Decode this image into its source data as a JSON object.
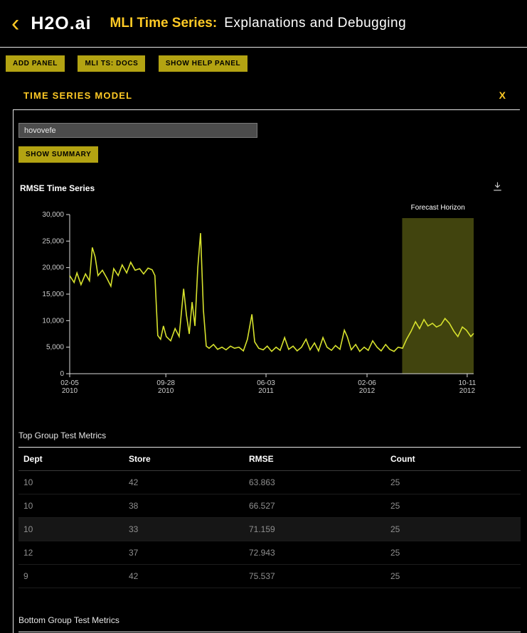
{
  "header": {
    "back_icon": "‹",
    "logo": "H2O.ai",
    "title_prefix": "MLI Time Series:",
    "title": "Explanations and Debugging"
  },
  "toolbar": {
    "buttons": [
      {
        "label": "ADD PANEL"
      },
      {
        "label": "MLI TS: DOCS"
      },
      {
        "label": "SHOW HELP PANEL"
      }
    ]
  },
  "panel": {
    "title": "TIME SERIES MODEL",
    "close_label": "X",
    "search_value": "hovovefe",
    "show_summary_label": "SHOW SUMMARY"
  },
  "colors": {
    "accent": "#fec925",
    "line": "#d7e22d",
    "forecast_fill": "#d7e22d",
    "axis": "#dddddd"
  },
  "chart_data": {
    "type": "line",
    "title": "RMSE Time Series",
    "xlabel": "",
    "ylabel": "",
    "ylim": [
      0,
      30000
    ],
    "y_ticks": [
      0,
      5000,
      10000,
      15000,
      20000,
      25000,
      30000
    ],
    "x_ticks": [
      {
        "line1": "02-05",
        "line2": "2010",
        "frac": 0.0
      },
      {
        "line1": "09-28",
        "line2": "2010",
        "frac": 0.238
      },
      {
        "line1": "06-03",
        "line2": "2011",
        "frac": 0.486
      },
      {
        "line1": "02-06",
        "line2": "2012",
        "frac": 0.736
      },
      {
        "line1": "10-11",
        "line2": "2012",
        "frac": 0.984
      }
    ],
    "legend": "off",
    "grid": "off",
    "forecast_region": {
      "label": "Forecast Horizon",
      "start_frac": 0.823,
      "end_frac": 1.0
    },
    "series": [
      {
        "name": "RMSE",
        "color": "#d7e22d",
        "points": [
          [
            0.0,
            18500
          ],
          [
            0.011,
            17200
          ],
          [
            0.018,
            19000
          ],
          [
            0.028,
            16800
          ],
          [
            0.039,
            18800
          ],
          [
            0.049,
            17500
          ],
          [
            0.056,
            23800
          ],
          [
            0.063,
            22000
          ],
          [
            0.07,
            18500
          ],
          [
            0.081,
            19500
          ],
          [
            0.092,
            18000
          ],
          [
            0.102,
            16500
          ],
          [
            0.109,
            19800
          ],
          [
            0.12,
            18500
          ],
          [
            0.13,
            20500
          ],
          [
            0.141,
            19000
          ],
          [
            0.151,
            21000
          ],
          [
            0.162,
            19500
          ],
          [
            0.173,
            19800
          ],
          [
            0.183,
            18800
          ],
          [
            0.194,
            19900
          ],
          [
            0.204,
            19600
          ],
          [
            0.211,
            18500
          ],
          [
            0.218,
            7200
          ],
          [
            0.225,
            6500
          ],
          [
            0.232,
            9000
          ],
          [
            0.239,
            7000
          ],
          [
            0.25,
            6200
          ],
          [
            0.261,
            8500
          ],
          [
            0.271,
            7000
          ],
          [
            0.282,
            16000
          ],
          [
            0.289,
            11000
          ],
          [
            0.296,
            7500
          ],
          [
            0.303,
            13500
          ],
          [
            0.31,
            9000
          ],
          [
            0.317,
            20000
          ],
          [
            0.324,
            26500
          ],
          [
            0.331,
            12000
          ],
          [
            0.338,
            5200
          ],
          [
            0.345,
            4800
          ],
          [
            0.356,
            5500
          ],
          [
            0.366,
            4600
          ],
          [
            0.377,
            5000
          ],
          [
            0.387,
            4500
          ],
          [
            0.398,
            5200
          ],
          [
            0.408,
            4800
          ],
          [
            0.419,
            5000
          ],
          [
            0.43,
            4300
          ],
          [
            0.44,
            6500
          ],
          [
            0.451,
            11200
          ],
          [
            0.458,
            6000
          ],
          [
            0.468,
            4800
          ],
          [
            0.479,
            4500
          ],
          [
            0.489,
            5200
          ],
          [
            0.5,
            4200
          ],
          [
            0.511,
            5000
          ],
          [
            0.521,
            4400
          ],
          [
            0.532,
            6800
          ],
          [
            0.542,
            4600
          ],
          [
            0.553,
            5200
          ],
          [
            0.563,
            4300
          ],
          [
            0.574,
            5000
          ],
          [
            0.585,
            6500
          ],
          [
            0.595,
            4500
          ],
          [
            0.606,
            5800
          ],
          [
            0.616,
            4300
          ],
          [
            0.627,
            6800
          ],
          [
            0.637,
            5000
          ],
          [
            0.648,
            4400
          ],
          [
            0.658,
            5300
          ],
          [
            0.669,
            4600
          ],
          [
            0.68,
            8200
          ],
          [
            0.687,
            7000
          ],
          [
            0.697,
            4500
          ],
          [
            0.708,
            5500
          ],
          [
            0.718,
            4200
          ],
          [
            0.729,
            5000
          ],
          [
            0.739,
            4400
          ],
          [
            0.75,
            6200
          ],
          [
            0.761,
            5000
          ],
          [
            0.771,
            4300
          ],
          [
            0.782,
            5500
          ],
          [
            0.792,
            4600
          ],
          [
            0.803,
            4200
          ],
          [
            0.813,
            5000
          ],
          [
            0.824,
            4800
          ],
          [
            0.834,
            6500
          ],
          [
            0.845,
            8000
          ],
          [
            0.856,
            9800
          ],
          [
            0.866,
            8500
          ],
          [
            0.877,
            10200
          ],
          [
            0.887,
            9000
          ],
          [
            0.898,
            9500
          ],
          [
            0.908,
            8800
          ],
          [
            0.919,
            9200
          ],
          [
            0.929,
            10400
          ],
          [
            0.94,
            9500
          ],
          [
            0.951,
            8000
          ],
          [
            0.961,
            7000
          ],
          [
            0.972,
            8800
          ],
          [
            0.982,
            8200
          ],
          [
            0.993,
            7000
          ],
          [
            1.0,
            7600
          ]
        ]
      }
    ]
  },
  "tables": {
    "top": {
      "heading": "Top Group Test Metrics",
      "columns": [
        "Dept",
        "Store",
        "RMSE",
        "Count"
      ],
      "rows": [
        {
          "dept": "10",
          "store": "42",
          "rmse": "63.863",
          "count": "25"
        },
        {
          "dept": "10",
          "store": "38",
          "rmse": "66.527",
          "count": "25"
        },
        {
          "dept": "10",
          "store": "33",
          "rmse": "71.159",
          "count": "25"
        },
        {
          "dept": "12",
          "store": "37",
          "rmse": "72.943",
          "count": "25"
        },
        {
          "dept": "9",
          "store": "42",
          "rmse": "75.537",
          "count": "25"
        }
      ]
    },
    "bottom": {
      "heading": "Bottom Group Test Metrics"
    }
  }
}
